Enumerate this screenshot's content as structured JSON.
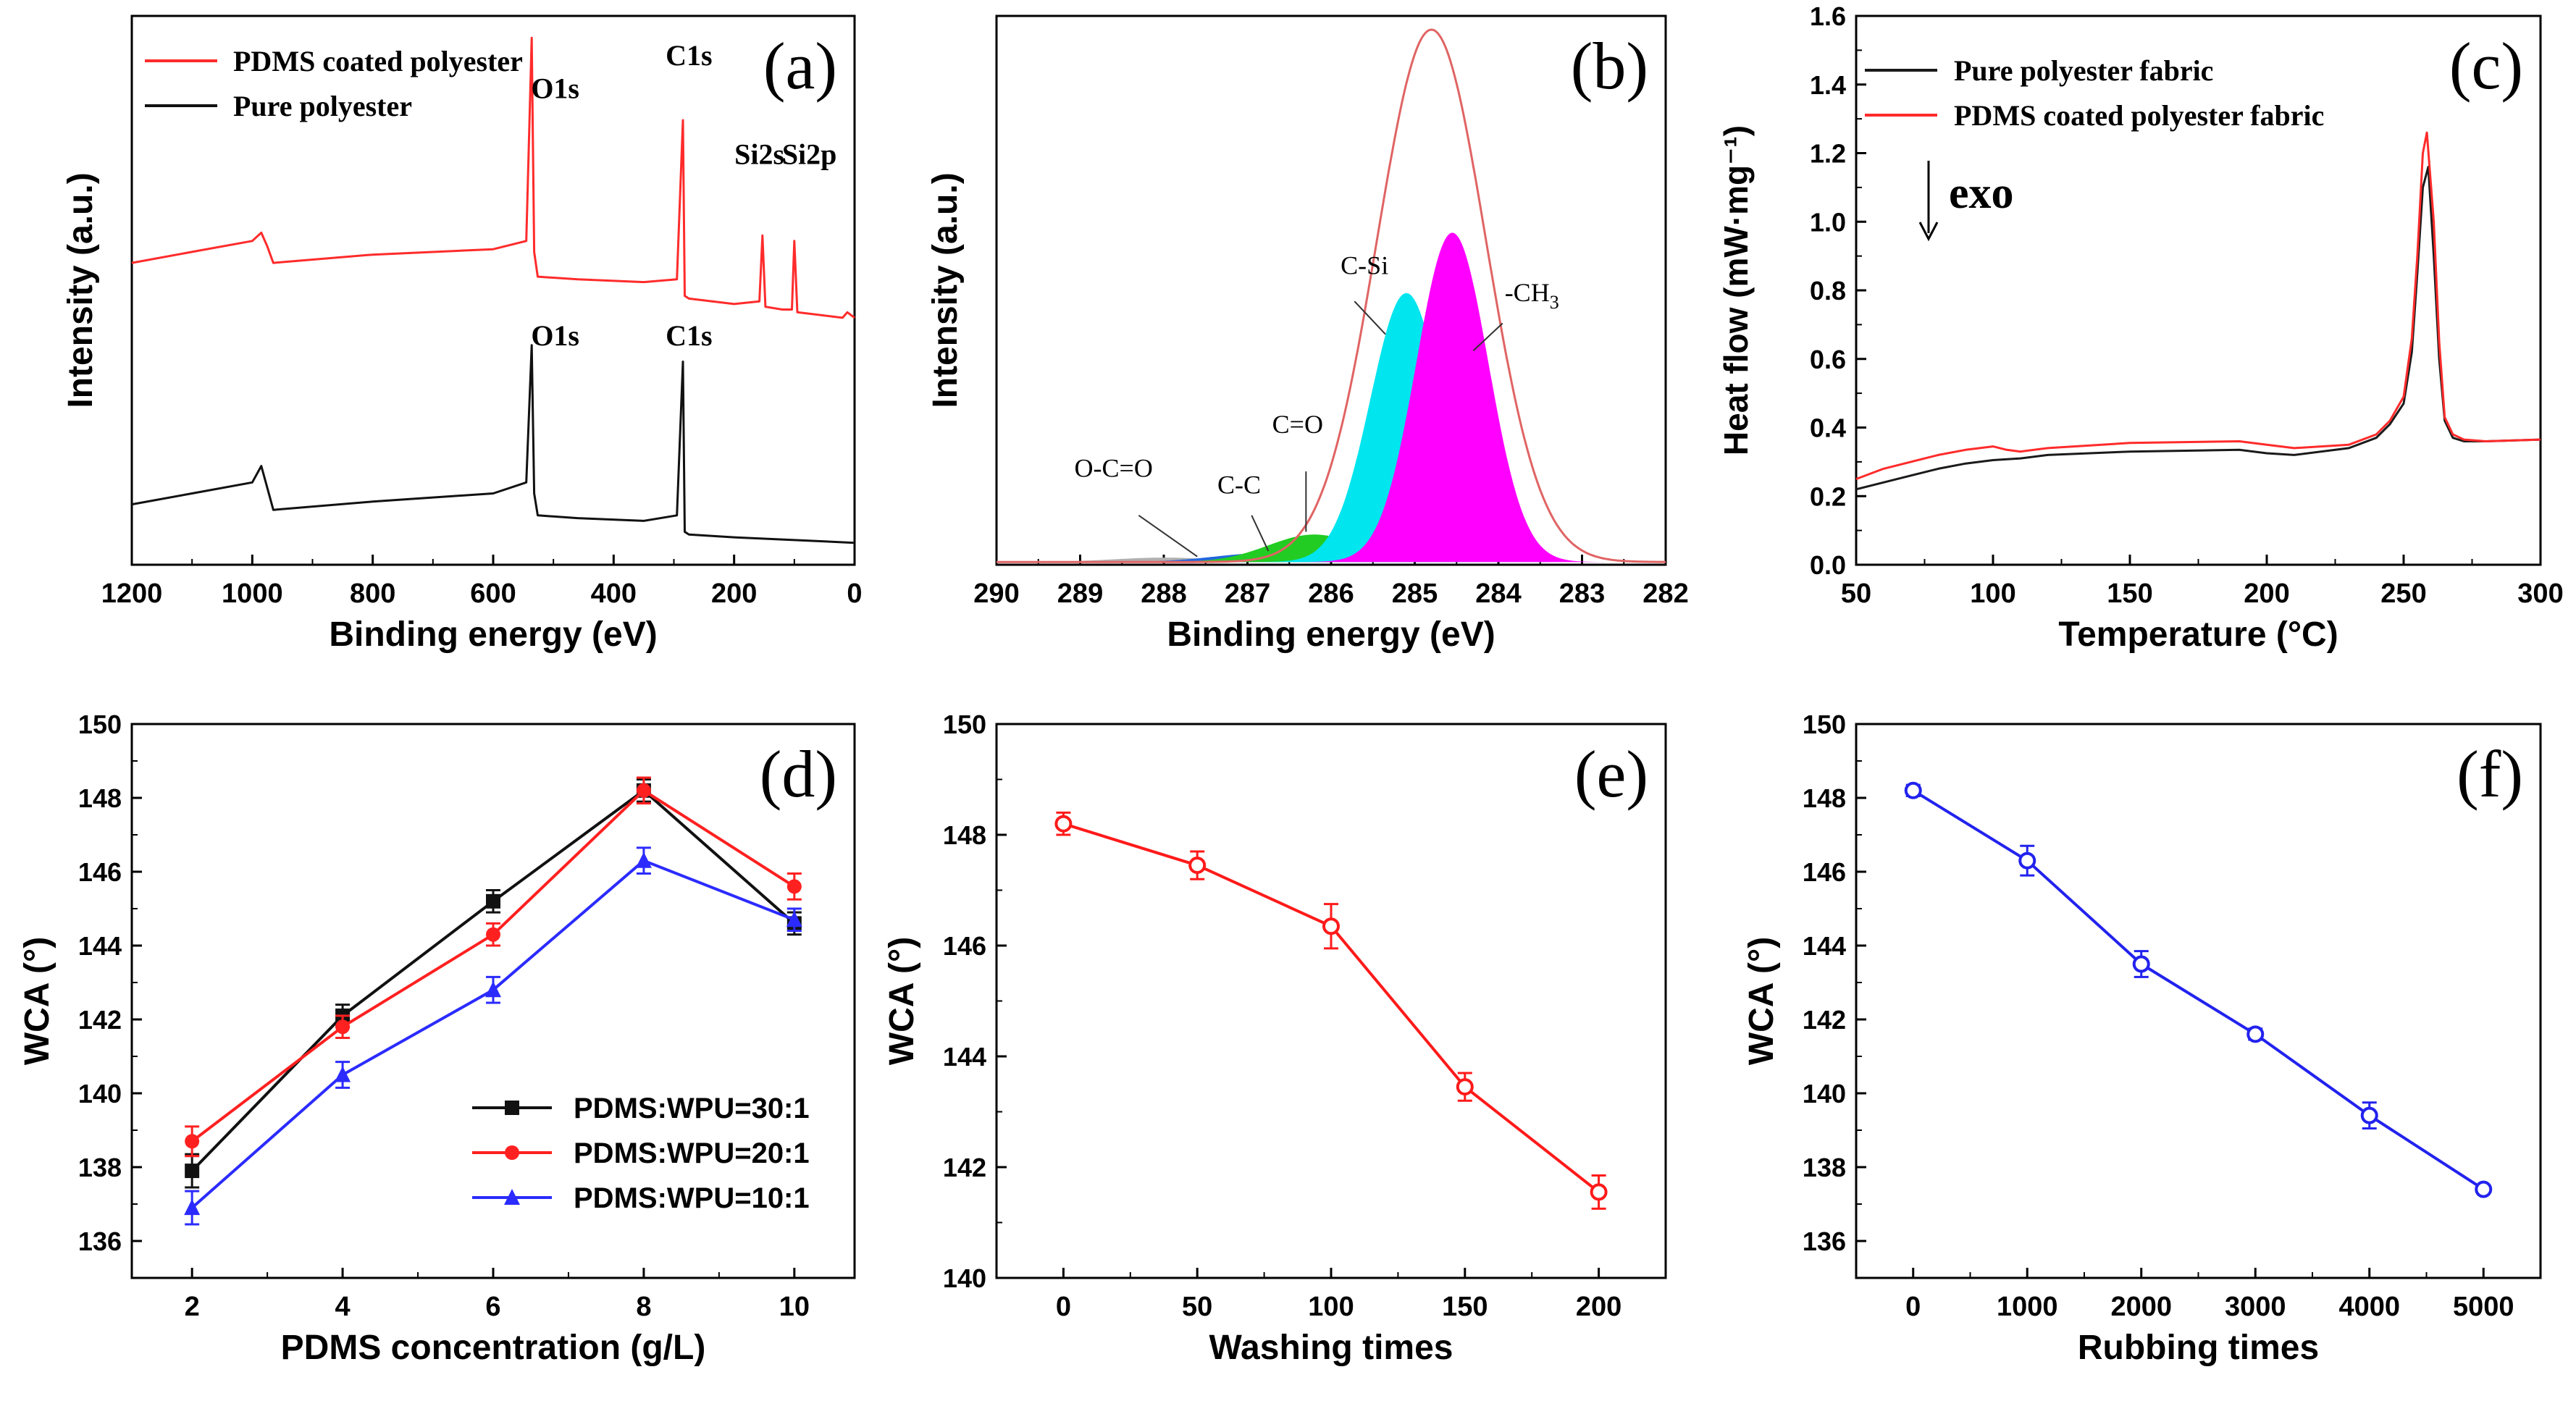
{
  "chart_data": [
    {
      "panel": "a",
      "type": "line",
      "panel_label": "(a)",
      "xlabel": "Binding energy (eV)",
      "ylabel": "Intensity (a.u.)",
      "xlim": [
        1200,
        0
      ],
      "ylim": [
        0,
        100
      ],
      "xticks": [
        "1200",
        "1000",
        "800",
        "600",
        "400",
        "200",
        "0"
      ],
      "legend": [
        "PDMS coated polyester",
        "Pure polyester"
      ],
      "series": [
        {
          "name": "PDMS coated polyester",
          "color": "#ff2b2b",
          "x": [
            1200,
            1100,
            1000,
            985,
            975,
            965,
            800,
            600,
            545,
            536,
            532,
            526,
            460,
            350,
            295,
            285,
            282,
            275,
            200,
            158,
            153,
            148,
            120,
            104,
            100,
            95,
            20,
            12,
            0
          ],
          "y": [
            55,
            57,
            59,
            60.5,
            58,
            55,
            56.5,
            57.5,
            59,
            96,
            57,
            52.5,
            52,
            51.5,
            52,
            81,
            49,
            48.5,
            47.5,
            48,
            60,
            47,
            46.5,
            46.5,
            59,
            46,
            45,
            46,
            45
          ]
        },
        {
          "name": "Pure polyester",
          "color": "#111111",
          "x": [
            1200,
            1100,
            1000,
            985,
            975,
            965,
            800,
            600,
            545,
            536,
            532,
            526,
            460,
            350,
            295,
            285,
            282,
            275,
            200,
            100,
            0
          ],
          "y": [
            11,
            13,
            15,
            18,
            14,
            10,
            11.5,
            13,
            15,
            40,
            13,
            9,
            8.5,
            8,
            9,
            37,
            6,
            5.5,
            5,
            4.5,
            4
          ]
        }
      ],
      "annotations": [
        {
          "text": "O1s",
          "x": 497,
          "y": 85
        },
        {
          "text": "C1s",
          "x": 275,
          "y": 91
        },
        {
          "text": "Si2s",
          "x": 158,
          "y": 73
        },
        {
          "text": "Si2p",
          "x": 75,
          "y": 73
        },
        {
          "text": "O1s",
          "x": 497,
          "y": 40
        },
        {
          "text": "C1s",
          "x": 275,
          "y": 40
        }
      ]
    },
    {
      "panel": "b",
      "type": "area",
      "panel_label": "(b)",
      "xlabel": "Binding energy (eV)",
      "ylabel": "Intensity (a.u.)",
      "xlim": [
        290,
        282
      ],
      "ylim": [
        0,
        100
      ],
      "xticks": [
        "290",
        "289",
        "288",
        "287",
        "286",
        "285",
        "284",
        "283",
        "282"
      ],
      "envelope": {
        "name": "fit envelope",
        "color": "#e06464",
        "center": 284.8,
        "height": 97,
        "sigma": 0.65
      },
      "peaks": [
        {
          "name": "-CH3",
          "color": "#ff00ff",
          "center": 284.55,
          "height": 60,
          "sigma": 0.43
        },
        {
          "name": "C-Si",
          "color": "#00e5ee",
          "center": 285.1,
          "height": 49,
          "sigma": 0.43
        },
        {
          "name": "C=O",
          "color": "#22cc22",
          "center": 286.2,
          "height": 5,
          "sigma": 0.55
        },
        {
          "name": "C-C",
          "color": "#2266dd",
          "center": 286.8,
          "height": 1.6,
          "sigma": 0.6
        },
        {
          "name": "O-C=O",
          "color": "#b0b0b0",
          "center": 288.0,
          "height": 0.8,
          "sigma": 0.6
        }
      ],
      "annotations": [
        {
          "text": "C-Si",
          "x": 285.6,
          "y": 53
        },
        {
          "text": "-CH3",
          "x": 283.6,
          "y": 48
        },
        {
          "text": "C=O",
          "x": 286.4,
          "y": 24
        },
        {
          "text": "C-C",
          "x": 287.1,
          "y": 13
        },
        {
          "text": "O-C=O",
          "x": 288.6,
          "y": 16
        }
      ]
    },
    {
      "panel": "c",
      "type": "line",
      "panel_label": "(c)",
      "xlabel": "Temperature (°C)",
      "ylabel": "Heat flow (mW·mg⁻¹)",
      "xlim": [
        50,
        300
      ],
      "ylim": [
        0,
        1.6
      ],
      "xticks": [
        "50",
        "100",
        "150",
        "200",
        "250",
        "300"
      ],
      "yticks": [
        "0.0",
        "0.2",
        "0.4",
        "0.6",
        "0.8",
        "1.0",
        "1.2",
        "1.4",
        "1.6"
      ],
      "exo_label": "exo",
      "legend": [
        "Pure polyester fabric",
        "PDMS coated polyester fabric"
      ],
      "series": [
        {
          "name": "Pure polyester fabric",
          "color": "#1a1a1a",
          "x": [
            50,
            60,
            70,
            80,
            90,
            100,
            110,
            120,
            150,
            190,
            200,
            210,
            230,
            240,
            245,
            250,
            253,
            255,
            257,
            259,
            261,
            263,
            265,
            268,
            272,
            280,
            300
          ],
          "y": [
            0.22,
            0.24,
            0.26,
            0.28,
            0.295,
            0.305,
            0.31,
            0.32,
            0.33,
            0.335,
            0.325,
            0.32,
            0.34,
            0.37,
            0.41,
            0.47,
            0.62,
            0.85,
            1.1,
            1.16,
            0.9,
            0.6,
            0.42,
            0.37,
            0.36,
            0.36,
            0.365
          ]
        },
        {
          "name": "PDMS coated polyester fabric",
          "color": "#ff2b2b",
          "x": [
            50,
            60,
            70,
            80,
            90,
            100,
            105,
            110,
            120,
            150,
            190,
            200,
            210,
            230,
            240,
            245,
            250,
            253,
            255,
            257,
            258.5,
            261,
            263,
            265,
            268,
            272,
            280,
            300
          ],
          "y": [
            0.25,
            0.28,
            0.3,
            0.32,
            0.335,
            0.345,
            0.335,
            0.33,
            0.34,
            0.355,
            0.36,
            0.35,
            0.34,
            0.35,
            0.38,
            0.42,
            0.49,
            0.66,
            0.9,
            1.2,
            1.26,
            1.0,
            0.65,
            0.43,
            0.38,
            0.365,
            0.36,
            0.365
          ]
        }
      ]
    },
    {
      "panel": "d",
      "type": "line",
      "panel_label": "(d)",
      "xlabel": "PDMS concentration (g/L)",
      "ylabel": "WCA (°)",
      "xlim": [
        1.2,
        10.8
      ],
      "ylim": [
        135,
        150
      ],
      "xticks": [
        "2",
        "4",
        "6",
        "8",
        "10"
      ],
      "yticks": [
        "136",
        "138",
        "140",
        "142",
        "144",
        "146",
        "148",
        "150"
      ],
      "x": [
        2,
        4,
        6,
        8,
        10
      ],
      "series": [
        {
          "name": "PDMS:WPU=30:1",
          "color": "#111111",
          "marker": "square",
          "values": [
            137.9,
            142.1,
            145.2,
            148.2,
            144.6
          ],
          "errors": [
            0.45,
            0.3,
            0.3,
            0.3,
            0.3
          ]
        },
        {
          "name": "PDMS:WPU=20:1",
          "color": "#ff2020",
          "marker": "circle",
          "values": [
            138.7,
            141.8,
            144.3,
            148.2,
            145.6
          ],
          "errors": [
            0.4,
            0.3,
            0.3,
            0.35,
            0.35
          ]
        },
        {
          "name": "PDMS:WPU=10:1",
          "color": "#2b2bff",
          "marker": "triangle",
          "values": [
            136.9,
            140.5,
            142.8,
            146.3,
            144.7
          ],
          "errors": [
            0.45,
            0.35,
            0.35,
            0.35,
            0.3
          ]
        }
      ]
    },
    {
      "panel": "e",
      "type": "line",
      "panel_label": "(e)",
      "xlabel": "Washing times",
      "ylabel": "WCA (°)",
      "xlim": [
        -25,
        225
      ],
      "ylim": [
        140,
        150
      ],
      "xticks": [
        "0",
        "50",
        "100",
        "150",
        "200"
      ],
      "yticks": [
        "140",
        "142",
        "144",
        "146",
        "148",
        "150"
      ],
      "x": [
        0,
        50,
        100,
        150,
        200
      ],
      "series": [
        {
          "name": "WCA",
          "color": "#ff1a1a",
          "marker": "circle",
          "values": [
            148.2,
            147.45,
            146.35,
            143.45,
            141.55
          ],
          "errors": [
            0.2,
            0.25,
            0.4,
            0.25,
            0.3
          ]
        }
      ]
    },
    {
      "panel": "f",
      "type": "line",
      "panel_label": "(f)",
      "xlabel": "Rubbing times",
      "ylabel": "WCA (°)",
      "xlim": [
        -500,
        5500
      ],
      "ylim": [
        135,
        150
      ],
      "xticks": [
        "0",
        "1000",
        "2000",
        "3000",
        "4000",
        "5000"
      ],
      "yticks": [
        "136",
        "138",
        "140",
        "142",
        "144",
        "146",
        "148",
        "150"
      ],
      "x": [
        0,
        1000,
        2000,
        3000,
        4000,
        5000
      ],
      "series": [
        {
          "name": "WCA",
          "color": "#2222ee",
          "marker": "circle",
          "values": [
            148.2,
            146.3,
            143.5,
            141.6,
            139.4,
            137.4
          ],
          "errors": [
            0.15,
            0.4,
            0.35,
            0.15,
            0.35,
            0.1
          ]
        }
      ]
    }
  ]
}
